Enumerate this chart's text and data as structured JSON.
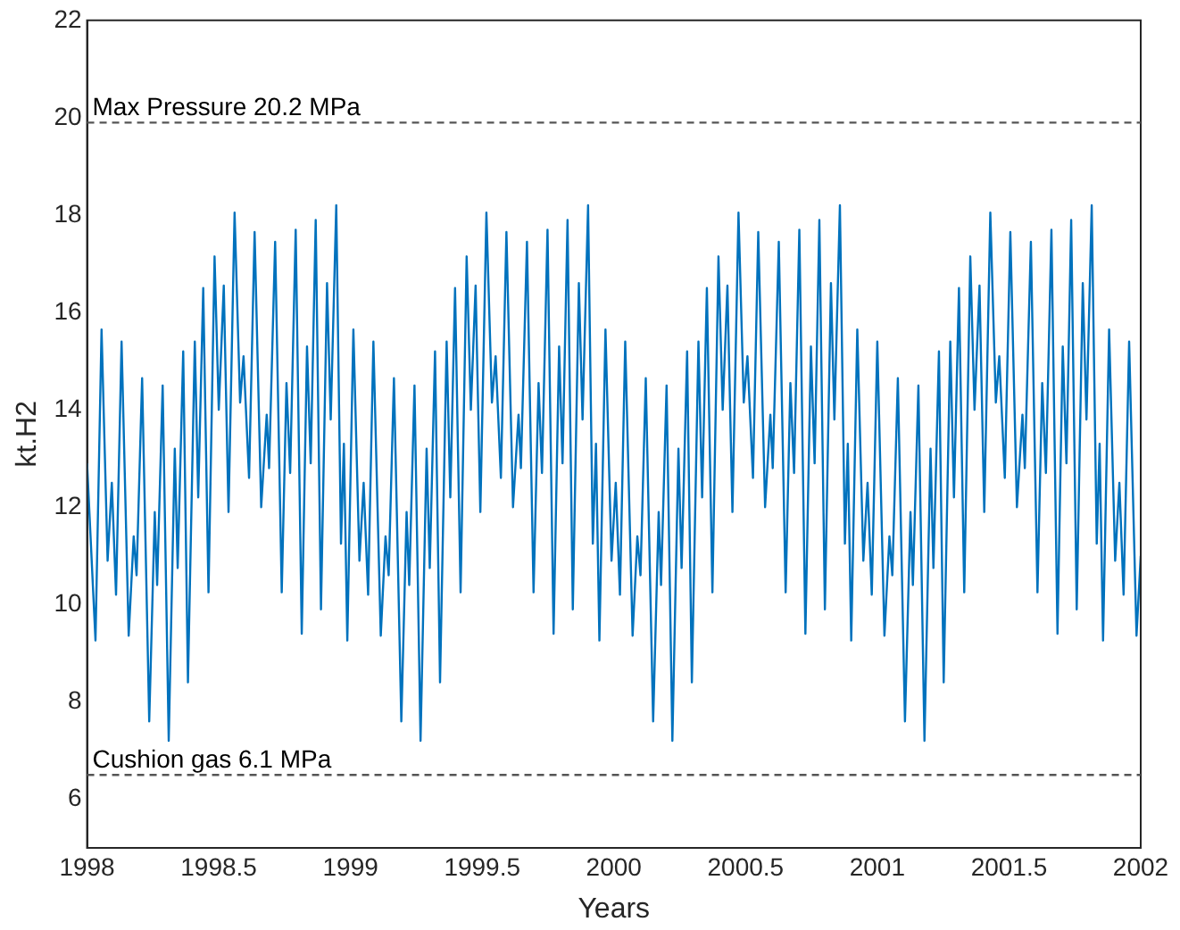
{
  "chart_data": {
    "type": "line",
    "xlabel": "Years",
    "ylabel": "kt.H2",
    "xlim": [
      1998,
      2002
    ],
    "xticks": [
      1998,
      1998.5,
      1999,
      1999.5,
      2000,
      2000.5,
      2001,
      2001.5,
      2002
    ],
    "ylim": [
      5,
      22
    ],
    "yticks": [
      6,
      8,
      10,
      12,
      14,
      16,
      18,
      20,
      22
    ],
    "grid": false,
    "legend": false,
    "marker": "none",
    "line_style": "solid",
    "ref_lines": [
      {
        "axis": "y",
        "value": 19.9,
        "label": "Max Pressure 20.2 MPa",
        "color": "#555555",
        "line_style": "dashed"
      },
      {
        "axis": "y",
        "value": 6.5,
        "label": "Cushion gas 6.1 MPa",
        "color": "#555555",
        "line_style": "dashed"
      }
    ],
    "series": [
      {
        "color": "#0072bd",
        "x": [
          1998.0,
          1998.032,
          1998.055,
          1998.078,
          1998.094,
          1998.11,
          1998.131,
          1998.158,
          1998.177,
          1998.188,
          1998.209,
          1998.236,
          1998.257,
          1998.266,
          1998.287,
          1998.31,
          1998.333,
          1998.344,
          1998.365,
          1998.383,
          1998.409,
          1998.422,
          1998.441,
          1998.461,
          1998.484,
          1998.5,
          1998.519,
          1998.537,
          1998.56,
          1998.581,
          1998.594,
          1998.615,
          1998.636,
          1998.661,
          1998.682,
          1998.691,
          1998.714,
          1998.739,
          1998.757,
          1998.771,
          1998.792,
          1998.815,
          1998.835,
          1998.849,
          1998.868,
          1998.888,
          1998.911,
          1998.925,
          1998.946,
          1998.964,
          1998.975,
          1998.988,
          1999.011,
          1999.034,
          1999.05,
          1999.067,
          1999.087,
          1999.115,
          1999.133,
          1999.145,
          1999.165,
          1999.193,
          1999.213,
          1999.223,
          1999.243,
          1999.266,
          1999.289,
          1999.301,
          1999.321,
          1999.34,
          1999.365,
          1999.379,
          1999.397,
          1999.418,
          1999.441,
          1999.457,
          1999.475,
          1999.493,
          1999.516,
          1999.537,
          1999.551,
          1999.571,
          1999.592,
          1999.617,
          1999.638,
          1999.647,
          1999.67,
          1999.695,
          1999.714,
          1999.727,
          1999.748,
          1999.771,
          1999.792,
          1999.805,
          1999.824,
          1999.844,
          1999.867,
          1999.881,
          1999.902,
          1999.92,
          1999.932,
          1999.945,
          1999.968,
          1999.991,
          2000.007,
          2000.023,
          2000.043,
          2000.071,
          2000.089,
          2000.101,
          2000.121,
          2000.149,
          2000.17,
          2000.179,
          2000.2,
          2000.222,
          2000.245,
          2000.257,
          2000.278,
          2000.296,
          2000.321,
          2000.335,
          2000.353,
          2000.374,
          2000.397,
          2000.413,
          2000.431,
          2000.45,
          2000.473,
          2000.493,
          2000.507,
          2000.528,
          2000.548,
          2000.574,
          2000.594,
          2000.603,
          2000.626,
          2000.652,
          2000.67,
          2000.684,
          2000.704,
          2000.727,
          2000.748,
          2000.762,
          2000.78,
          2000.801,
          2000.824,
          2000.837,
          2000.858,
          2000.877,
          2000.888,
          2000.901,
          2000.924,
          2000.947,
          2000.963,
          2000.979,
          2001.0,
          2001.027,
          2001.046,
          2001.057,
          2001.078,
          2001.105,
          2001.126,
          2001.135,
          2001.156,
          2001.179,
          2001.202,
          2001.213,
          2001.234,
          2001.252,
          2001.277,
          2001.291,
          2001.31,
          2001.33,
          2001.353,
          2001.369,
          2001.388,
          2001.406,
          2001.429,
          2001.45,
          2001.463,
          2001.484,
          2001.505,
          2001.53,
          2001.551,
          2001.56,
          2001.583,
          2001.608,
          2001.626,
          2001.64,
          2001.661,
          2001.684,
          2001.704,
          2001.718,
          2001.736,
          2001.757,
          2001.78,
          2001.794,
          2001.814,
          2001.833,
          2001.844,
          2001.857,
          2001.88,
          2001.903,
          2001.919,
          2001.935,
          2001.956,
          2001.984,
          2002.0
        ],
        "values": [
          12.9,
          9.26,
          15.65,
          10.9,
          12.5,
          10.2,
          15.4,
          9.36,
          11.4,
          10.6,
          14.65,
          7.6,
          11.9,
          10.4,
          14.5,
          7.2,
          13.2,
          10.75,
          15.2,
          8.4,
          15.4,
          12.2,
          16.5,
          10.25,
          17.15,
          14.0,
          16.55,
          11.9,
          18.05,
          14.15,
          15.1,
          12.6,
          17.65,
          12.0,
          13.9,
          12.8,
          17.45,
          10.25,
          14.55,
          12.7,
          17.7,
          9.4,
          15.3,
          12.9,
          17.9,
          9.9,
          16.6,
          13.8,
          18.2,
          11.25,
          13.3,
          9.26,
          15.65,
          10.9,
          12.5,
          10.2,
          15.4,
          9.36,
          11.4,
          10.6,
          14.65,
          7.6,
          11.9,
          10.4,
          14.5,
          7.2,
          13.2,
          10.75,
          15.2,
          8.4,
          15.4,
          12.2,
          16.5,
          10.25,
          17.15,
          14.0,
          16.55,
          11.9,
          18.05,
          14.15,
          15.1,
          12.6,
          17.65,
          12.0,
          13.9,
          12.8,
          17.45,
          10.25,
          14.55,
          12.7,
          17.7,
          9.4,
          15.3,
          12.9,
          17.9,
          9.9,
          16.6,
          13.8,
          18.2,
          11.25,
          13.3,
          9.26,
          15.65,
          10.9,
          12.5,
          10.2,
          15.4,
          9.36,
          11.4,
          10.6,
          14.65,
          7.6,
          11.9,
          10.4,
          14.5,
          7.2,
          13.2,
          10.75,
          15.2,
          8.4,
          15.4,
          12.2,
          16.5,
          10.25,
          17.15,
          14.0,
          16.55,
          11.9,
          18.05,
          14.15,
          15.1,
          12.6,
          17.65,
          12.0,
          13.9,
          12.8,
          17.45,
          10.25,
          14.55,
          12.7,
          17.7,
          9.4,
          15.3,
          12.9,
          17.9,
          9.9,
          16.6,
          13.8,
          18.2,
          11.25,
          13.3,
          9.26,
          15.65,
          10.9,
          12.5,
          10.2,
          15.4,
          9.36,
          11.4,
          10.6,
          14.65,
          7.6,
          11.9,
          10.4,
          14.5,
          7.2,
          13.2,
          10.75,
          15.2,
          8.4,
          15.4,
          12.2,
          16.5,
          10.25,
          17.15,
          14.0,
          16.55,
          11.9,
          18.05,
          14.15,
          15.1,
          12.6,
          17.65,
          12.0,
          13.9,
          12.8,
          17.45,
          10.25,
          14.55,
          12.7,
          17.7,
          9.4,
          15.3,
          12.9,
          17.9,
          9.9,
          16.6,
          13.8,
          18.2,
          11.25,
          13.3,
          9.26,
          15.65,
          10.9,
          12.5,
          10.2,
          15.4,
          9.36,
          11.0
        ]
      }
    ]
  }
}
